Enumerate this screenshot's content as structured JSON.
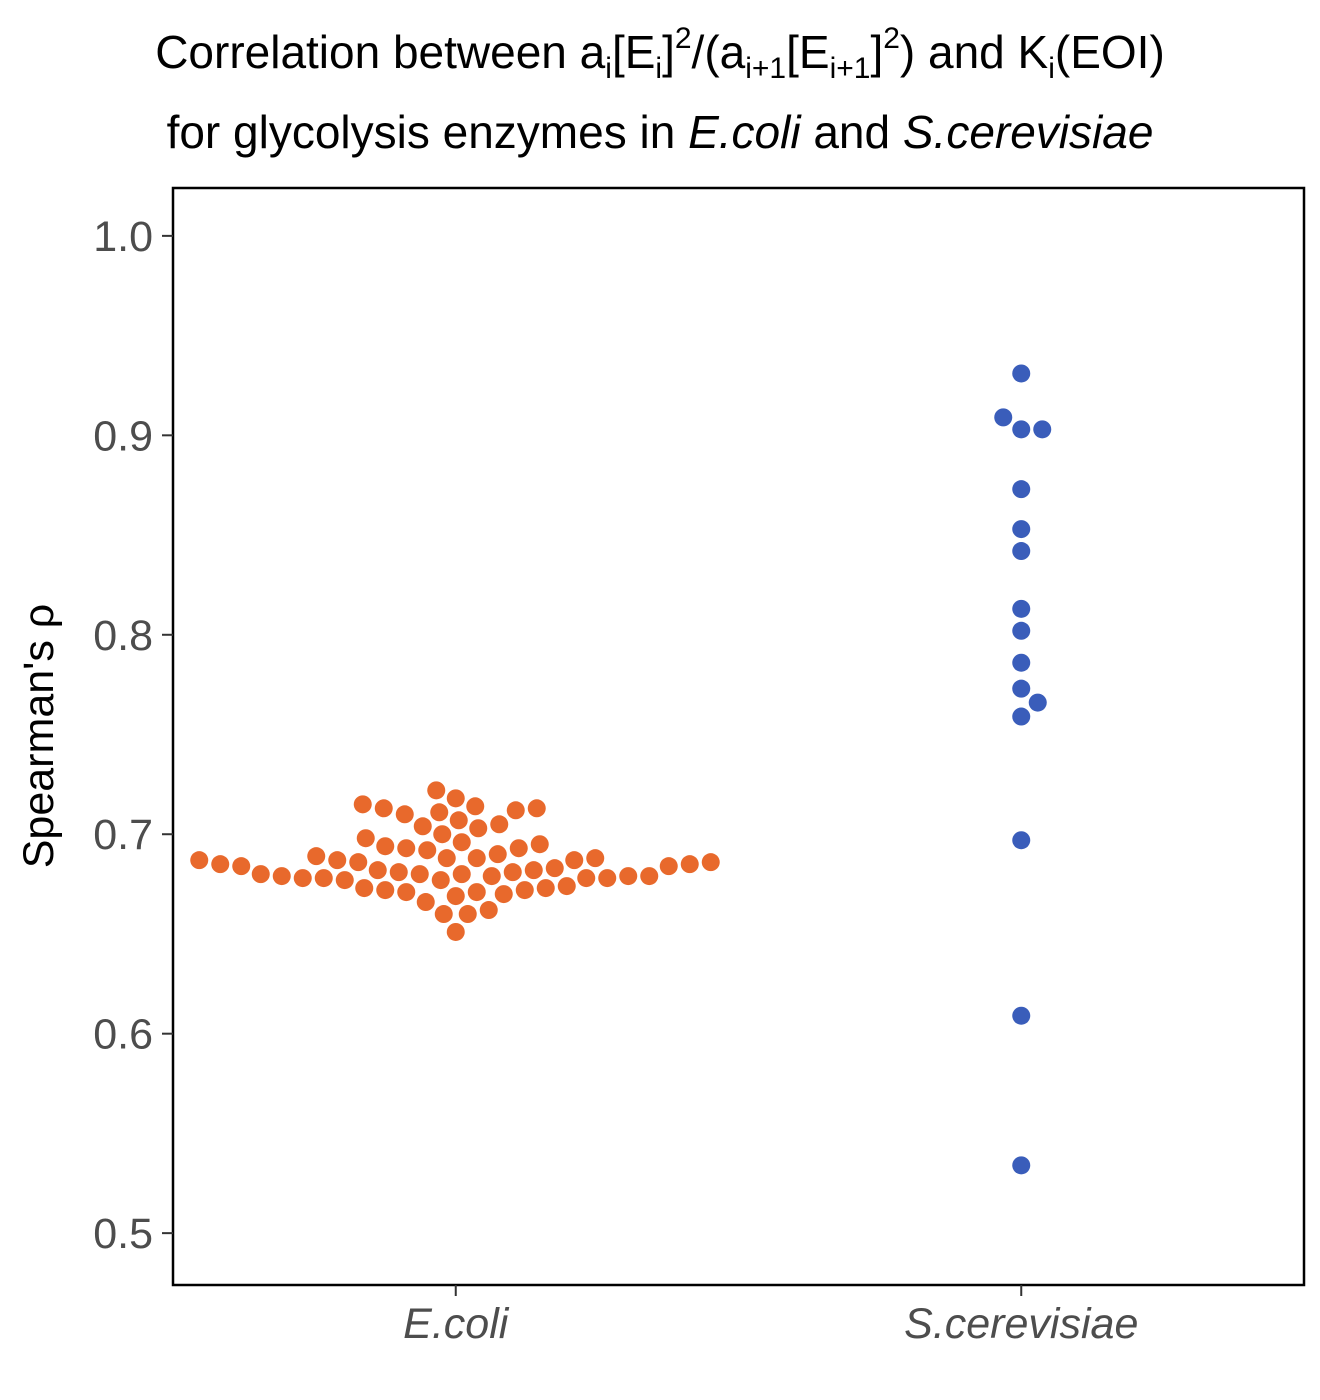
{
  "chart_data": {
    "type": "scatter",
    "subtype": "beeswarm",
    "title": {
      "line1": {
        "part1": "Correlation between a",
        "sub1": "i",
        "part2": "[E",
        "sub2": "i",
        "part3": "]",
        "sup1": "2",
        "part4": "/(a",
        "sub3": "i+1",
        "part5": "[E",
        "sub4": "i+1",
        "part6": "]",
        "sup2": "2",
        "part7": ") and K",
        "sub5": "i",
        "part8": "(EOI)"
      },
      "line2": {
        "part1": "for glycolysis enzymes in ",
        "italic1": "E.coli",
        "part2": " and ",
        "italic2": "S.cerevisiae"
      }
    },
    "ylabel": "Spearman's  ρ",
    "xlabel": "",
    "ylim": [
      0.474,
      1.024
    ],
    "yticks": [
      "0.5",
      "0.6",
      "0.7",
      "0.8",
      "0.9",
      "1.0"
    ],
    "grid": false,
    "categories": [
      "E.coli",
      "S.cerevisiae"
    ],
    "series": [
      {
        "category": "E.coli",
        "color": "#E8692C",
        "values": [
          0.651,
          0.66,
          0.662,
          0.66,
          0.666,
          0.669,
          0.671,
          0.672,
          0.673,
          0.674,
          0.673,
          0.672,
          0.671,
          0.67,
          0.677,
          0.678,
          0.678,
          0.679,
          0.678,
          0.679,
          0.677,
          0.678,
          0.679,
          0.679,
          0.68,
          0.68,
          0.68,
          0.681,
          0.681,
          0.682,
          0.682,
          0.683,
          0.684,
          0.684,
          0.685,
          0.685,
          0.686,
          0.687,
          0.686,
          0.688,
          0.687,
          0.688,
          0.688,
          0.687,
          0.689,
          0.69,
          0.692,
          0.693,
          0.693,
          0.694,
          0.695,
          0.696,
          0.698,
          0.7,
          0.703,
          0.704,
          0.705,
          0.707,
          0.71,
          0.711,
          0.712,
          0.713,
          0.713,
          0.714,
          0.715,
          0.718,
          0.722
        ]
      },
      {
        "category": "S.cerevisiae",
        "color": "#3A5DBA",
        "values": [
          0.534,
          0.609,
          0.697,
          0.759,
          0.766,
          0.773,
          0.786,
          0.802,
          0.813,
          0.842,
          0.853,
          0.873,
          0.903,
          0.903,
          0.909,
          0.931
        ]
      }
    ]
  }
}
